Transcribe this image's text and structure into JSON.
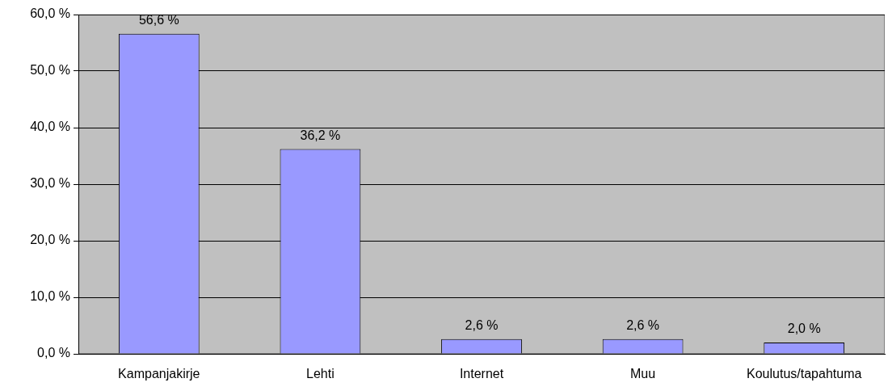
{
  "chart_data": {
    "type": "bar",
    "categories": [
      "Kampanjakirje",
      "Lehti",
      "Internet",
      "Muu",
      "Koulutus/tapahtuma"
    ],
    "values": [
      56.6,
      36.2,
      2.6,
      2.6,
      2.0
    ],
    "value_labels": [
      "56,6 %",
      "36,2 %",
      "2,6 %",
      "2,6 %",
      "2,0 %"
    ],
    "color": "#9999ff",
    "ylim": [
      0,
      60
    ],
    "yticks": [
      {
        "value": 0,
        "label": "0,0 %"
      },
      {
        "value": 10,
        "label": "10,0 %"
      },
      {
        "value": 20,
        "label": "20,0 %"
      },
      {
        "value": 30,
        "label": "30,0 %"
      },
      {
        "value": 40,
        "label": "40,0 %"
      },
      {
        "value": 50,
        "label": "50,0 %"
      },
      {
        "value": 60,
        "label": "60,0 %"
      }
    ],
    "grid": "y",
    "legend": false
  }
}
